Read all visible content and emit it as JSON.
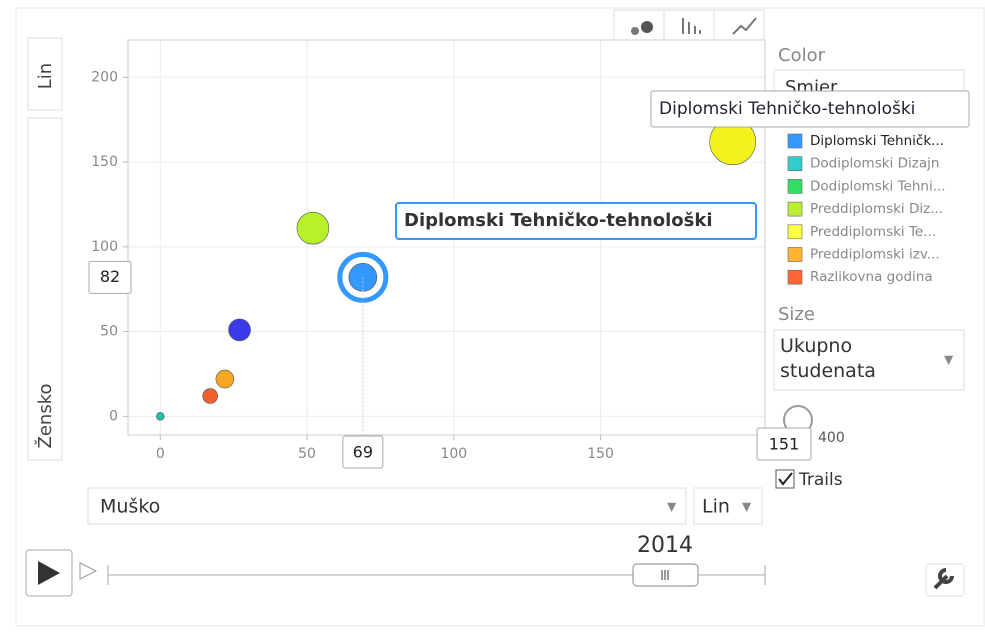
{
  "chart_data": {
    "type": "bubble",
    "xlim": [
      -11,
      206
    ],
    "ylim": [
      -11,
      222
    ],
    "xticks": [
      0,
      50,
      100,
      150
    ],
    "yticks": [
      0,
      50,
      100,
      150,
      200
    ],
    "grid": true,
    "points": [
      {
        "name": "Diplomski Tehničko-tehnološki",
        "color": "#3399ff",
        "x": 69,
        "y": 82,
        "size": 151
      },
      {
        "color": "#f2f21c",
        "x": 195,
        "y": 162,
        "size": 407
      },
      {
        "color": "#b8f02a",
        "x": 52,
        "y": 111,
        "size": 197
      },
      {
        "color": "#3a3ae8",
        "x": 27,
        "y": 51,
        "size": 93
      },
      {
        "color": "#f5a623",
        "x": 22,
        "y": 22,
        "size": 62
      },
      {
        "color": "#f0602a",
        "x": 17,
        "y": 12,
        "size": 43
      },
      {
        "color": "#20c0a0",
        "x": 0,
        "y": 0,
        "size": 12
      }
    ],
    "x_value_label": "69",
    "y_value_label": "82",
    "size_value_label": "151"
  },
  "ui": {
    "y_scale": "Lin",
    "y_axis": "Žensko",
    "x_axis": "Muško",
    "x_scale": "Lin",
    "year": "2014",
    "color_title": "Color",
    "color_select": "Smjer",
    "size_title": "Size",
    "size_select": "Ukupno studenata",
    "size_max": "400",
    "trails": "Trails",
    "tooltip": "Diplomski Tehničko-tehnološki",
    "legend": [
      {
        "label": "Diplomski Tehničk...",
        "color": "#3399ff"
      },
      {
        "label": "Dodiplomski Dizajn",
        "color": "#33cccc"
      },
      {
        "label": "Dodiplomski Tehni...",
        "color": "#33dd66"
      },
      {
        "label": "Preddiplomski Diz...",
        "color": "#bbee33"
      },
      {
        "label": "Preddiplomski Te...",
        "color": "#ffff44"
      },
      {
        "label": "Preddiplomski izv...",
        "color": "#ffb533"
      },
      {
        "label": "Razlikovna godina",
        "color": "#ff6633"
      }
    ]
  }
}
